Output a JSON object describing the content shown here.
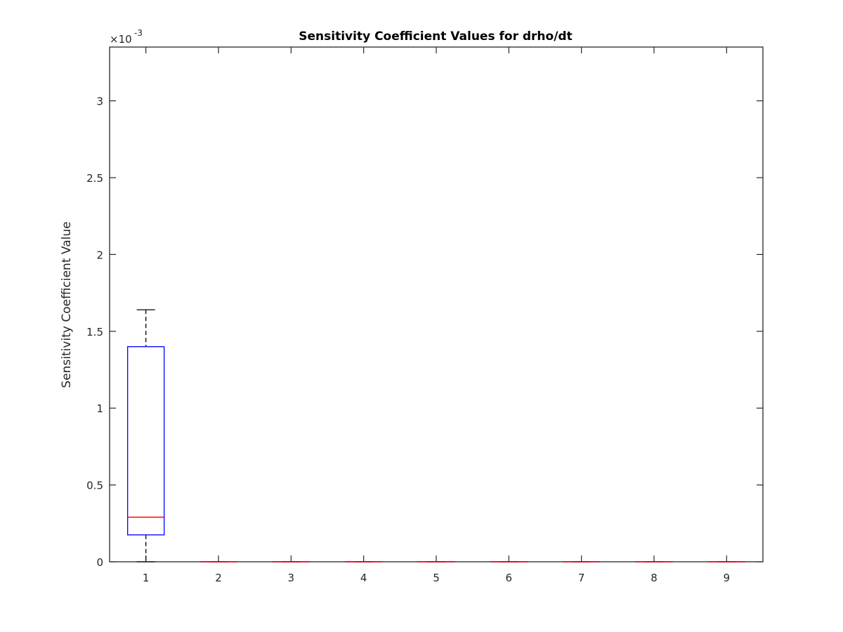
{
  "chart_data": {
    "type": "box",
    "title": "Sensitivity Coefficient Values for drho/dt",
    "xlabel": "",
    "ylabel": "Sensitivity Coefficient Value",
    "y_multiplier_label": "×10",
    "y_multiplier_exponent": "-3",
    "ylim": [
      0,
      0.00335
    ],
    "yticks": [
      0,
      0.0005,
      0.001,
      0.0015,
      0.002,
      0.0025,
      0.003
    ],
    "ytick_labels": [
      "0",
      "0.5",
      "1",
      "1.5",
      "2",
      "2.5",
      "3"
    ],
    "categories": [
      "1",
      "2",
      "3",
      "4",
      "5",
      "6",
      "7",
      "8",
      "9"
    ],
    "grid": false,
    "boxes": [
      {
        "category": "1",
        "whisker_low": 0,
        "q1": 0.000175,
        "median": 0.00029,
        "q3": 0.0014,
        "whisker_high": 0.00164
      },
      {
        "category": "2",
        "whisker_low": 0,
        "q1": 0,
        "median": 0,
        "q3": 0,
        "whisker_high": 0
      },
      {
        "category": "3",
        "whisker_low": 0,
        "q1": 0,
        "median": 0,
        "q3": 0,
        "whisker_high": 0
      },
      {
        "category": "4",
        "whisker_low": 0,
        "q1": 0,
        "median": 0,
        "q3": 0,
        "whisker_high": 0
      },
      {
        "category": "5",
        "whisker_low": 0,
        "q1": 0,
        "median": 0,
        "q3": 0,
        "whisker_high": 0
      },
      {
        "category": "6",
        "whisker_low": 0,
        "q1": 0,
        "median": 0,
        "q3": 0,
        "whisker_high": 0
      },
      {
        "category": "7",
        "whisker_low": 0,
        "q1": 0,
        "median": 0,
        "q3": 0,
        "whisker_high": 0
      },
      {
        "category": "8",
        "whisker_low": 0,
        "q1": 0,
        "median": 0,
        "q3": 0,
        "whisker_high": 0
      },
      {
        "category": "9",
        "whisker_low": 0,
        "q1": 0,
        "median": 0,
        "q3": 0,
        "whisker_high": 0
      }
    ],
    "colors": {
      "box": "#0000ff",
      "median": "#ff0000",
      "whisker": "#000000",
      "axes": "#262626"
    }
  }
}
